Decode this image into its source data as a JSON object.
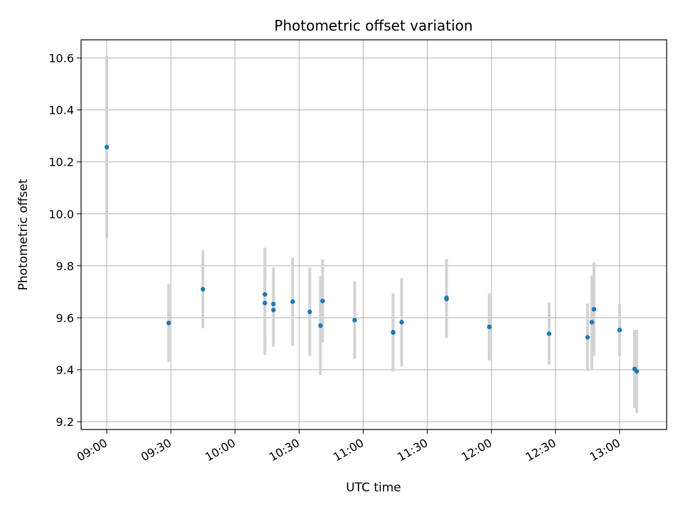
{
  "chart_data": {
    "type": "scatter",
    "title": "Photometric offset variation",
    "xlabel": "UTC time",
    "ylabel": "Photometric offset",
    "xlim": [
      "08:48",
      "13:22"
    ],
    "ylim": [
      9.17,
      10.67
    ],
    "x_ticks": [
      "09:00",
      "09:30",
      "10:00",
      "10:30",
      "11:00",
      "11:30",
      "12:00",
      "12:30",
      "13:00"
    ],
    "y_ticks": [
      "9.2",
      "9.4",
      "9.6",
      "9.8",
      "10.0",
      "10.2",
      "10.4",
      "10.6"
    ],
    "grid": true,
    "colors": {
      "point": "#1f77b4",
      "errorbar": "#d3d3d3",
      "grid": "#b0b0b0",
      "axis": "#000000"
    },
    "series": [
      {
        "x": [
          "09:00",
          "09:29",
          "09:45",
          "10:14",
          "10:14",
          "10:18",
          "10:18",
          "10:27",
          "10:35",
          "10:40",
          "10:41",
          "10:56",
          "11:14",
          "11:14",
          "11:18",
          "11:39",
          "11:39",
          "11:59",
          "12:27",
          "12:45",
          "12:47",
          "12:48",
          "13:00",
          "13:07",
          "13:08"
        ],
        "y": [
          10.257,
          9.58,
          9.71,
          9.69,
          9.657,
          9.653,
          9.63,
          9.662,
          9.623,
          9.57,
          9.665,
          9.591,
          9.545,
          9.543,
          9.583,
          9.677,
          9.672,
          9.565,
          9.539,
          9.525,
          9.583,
          9.633,
          9.553,
          9.403,
          9.394
        ],
        "err": [
          0.35,
          0.15,
          0.15,
          0.18,
          0.2,
          0.14,
          0.14,
          0.17,
          0.17,
          0.19,
          0.16,
          0.15,
          0.15,
          0.15,
          0.17,
          0.15,
          0.15,
          0.13,
          0.12,
          0.13,
          0.18,
          0.18,
          0.1,
          0.15,
          0.16
        ]
      }
    ]
  }
}
